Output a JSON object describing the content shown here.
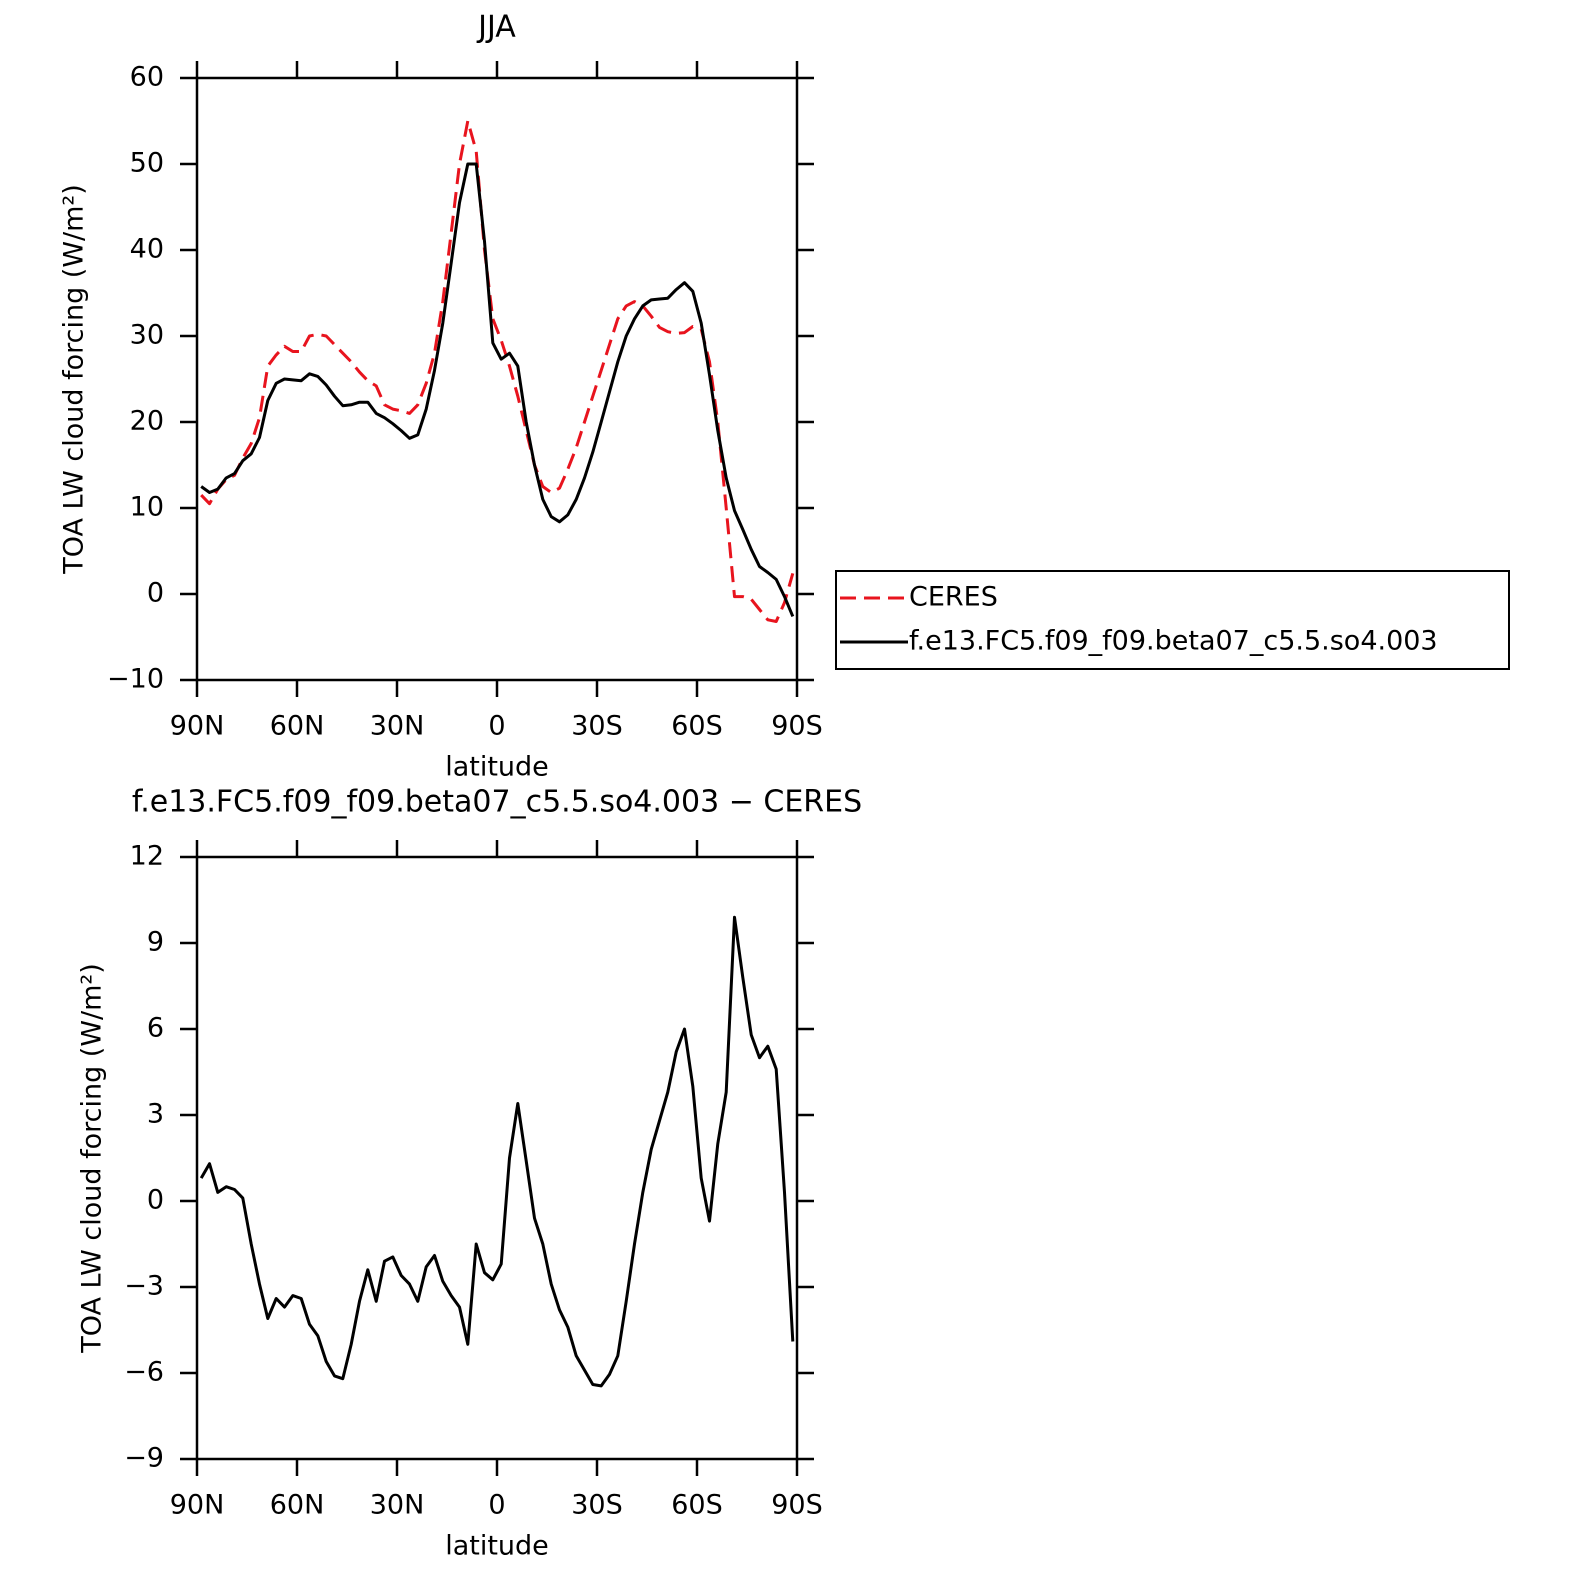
{
  "chart_data": [
    {
      "type": "line",
      "title": "JJA",
      "xlabel": "latitude",
      "ylabel": "TOA LW cloud forcing (W/m²)",
      "xlim": [
        90,
        -90
      ],
      "ylim": [
        -10,
        60
      ],
      "xticks": [
        {
          "value": 90,
          "label": "90N"
        },
        {
          "value": 60,
          "label": "60N"
        },
        {
          "value": 30,
          "label": "30N"
        },
        0,
        {
          "value": -30,
          "label": "30S"
        },
        {
          "value": -60,
          "label": "60S"
        },
        {
          "value": -90,
          "label": "90S"
        }
      ],
      "yticks": [
        {
          "value": -10,
          "label": "−10"
        },
        0,
        10,
        20,
        30,
        40,
        50,
        60
      ],
      "legend": "right",
      "x": [
        88.75,
        86.25,
        83.75,
        81.25,
        78.75,
        76.25,
        73.75,
        71.25,
        68.75,
        66.25,
        63.75,
        61.25,
        58.75,
        56.25,
        53.75,
        51.25,
        48.75,
        46.25,
        43.75,
        41.25,
        38.75,
        36.25,
        33.75,
        31.25,
        28.75,
        26.25,
        23.75,
        21.25,
        18.75,
        16.25,
        13.75,
        11.25,
        8.75,
        6.25,
        3.75,
        1.25,
        -1.25,
        -3.75,
        -6.25,
        -8.75,
        -11.25,
        -13.75,
        -16.25,
        -18.75,
        -21.25,
        -23.75,
        -26.25,
        -28.75,
        -31.25,
        -33.75,
        -36.25,
        -38.75,
        -41.25,
        -43.75,
        -46.25,
        -48.75,
        -51.25,
        -53.75,
        -56.25,
        -58.75,
        -61.25,
        -63.75,
        -66.25,
        -68.75,
        -71.25,
        -73.75,
        -76.25,
        -78.75,
        -81.25,
        -83.75,
        -86.25,
        -88.75
      ],
      "series": [
        {
          "name": "CERES",
          "color": "#e8141e",
          "dashed": true,
          "values": [
            11.5,
            10.5,
            12.2,
            13.3,
            13.8,
            15.8,
            17.5,
            20.5,
            26.5,
            27.8,
            28.8,
            28.2,
            28.2,
            30,
            30.2,
            30,
            29,
            28,
            27,
            25.8,
            24.8,
            24.2,
            22,
            21.5,
            21.3,
            21,
            22,
            24.5,
            28,
            34,
            42,
            50,
            55,
            51.5,
            40,
            32,
            29.5,
            26.5,
            23,
            19,
            15,
            12.5,
            11.8,
            12.3,
            14.5,
            17,
            20,
            23,
            26,
            29,
            32,
            33.5,
            34,
            33.5,
            32.3,
            31,
            30.5,
            30.3,
            30.4,
            31.1,
            30.8,
            27,
            20,
            10,
            -0.3,
            -0.3,
            -0.6,
            -1.8,
            -3,
            -3.2,
            -1,
            2.4
          ]
        },
        {
          "name": "f.e13.FC5.f09_f09.beta07_c5.5.so4.003",
          "color": "#000000",
          "dashed": false,
          "values": [
            12.5,
            11.8,
            12.2,
            13.5,
            14,
            15.5,
            16.3,
            18.2,
            22.5,
            24.5,
            25,
            24.9,
            24.8,
            25.6,
            25.3,
            24.3,
            23,
            21.9,
            22,
            22.3,
            22.3,
            21,
            20.5,
            19.8,
            19,
            18.1,
            18.5,
            21.5,
            26,
            31.5,
            38.5,
            45.5,
            50,
            50,
            41,
            29.2,
            27.3,
            28,
            26.5,
            20,
            15,
            11,
            9,
            8.4,
            9.2,
            11,
            13.5,
            16.5,
            20,
            23.5,
            27,
            30,
            32,
            33.5,
            34.2,
            34.3,
            34.4,
            35.4,
            36.2,
            35.2,
            31.5,
            25.5,
            19,
            13.5,
            9.7,
            7.5,
            5.2,
            3.2,
            2.5,
            1.7,
            -0.3,
            -2.6
          ]
        }
      ]
    },
    {
      "type": "line",
      "title": "f.e13.FC5.f09_f09.beta07_c5.5.so4.003 − CERES",
      "xlabel": "latitude",
      "ylabel": "TOA LW cloud forcing (W/m²)",
      "xlim": [
        90,
        -90
      ],
      "ylim": [
        -9,
        12
      ],
      "xticks": [
        {
          "value": 90,
          "label": "90N"
        },
        {
          "value": 60,
          "label": "60N"
        },
        {
          "value": 30,
          "label": "30N"
        },
        0,
        {
          "value": -30,
          "label": "30S"
        },
        {
          "value": -60,
          "label": "60S"
        },
        {
          "value": -90,
          "label": "90S"
        }
      ],
      "yticks": [
        {
          "value": -9,
          "label": "−9"
        },
        {
          "value": -6,
          "label": "−6"
        },
        {
          "value": -3,
          "label": "−3"
        },
        0,
        3,
        6,
        9,
        12
      ],
      "x": [
        88.75,
        86.25,
        83.75,
        81.25,
        78.75,
        76.25,
        73.75,
        71.25,
        68.75,
        66.25,
        63.75,
        61.25,
        58.75,
        56.25,
        53.75,
        51.25,
        48.75,
        46.25,
        43.75,
        41.25,
        38.75,
        36.25,
        33.75,
        31.25,
        28.75,
        26.25,
        23.75,
        21.25,
        18.75,
        16.25,
        13.75,
        11.25,
        8.75,
        6.25,
        3.75,
        1.25,
        -1.25,
        -3.75,
        -6.25,
        -8.75,
        -11.25,
        -13.75,
        -16.25,
        -18.75,
        -21.25,
        -23.75,
        -26.25,
        -28.75,
        -31.25,
        -33.75,
        -36.25,
        -38.75,
        -41.25,
        -43.75,
        -46.25,
        -48.75,
        -51.25,
        -53.75,
        -56.25,
        -58.75,
        -61.25,
        -63.75,
        -66.25,
        -68.75,
        -71.25,
        -73.75,
        -76.25,
        -78.75,
        -81.25,
        -83.75,
        -86.25,
        -88.75
      ],
      "series": [
        {
          "color": "#000000",
          "dashed": false,
          "values": [
            0.8,
            1.3,
            0.3,
            0.5,
            0.4,
            0.1,
            -1.5,
            -2.9,
            -4.1,
            -3.4,
            -3.7,
            -3.3,
            -3.4,
            -4.3,
            -4.7,
            -5.6,
            -6.1,
            -6.2,
            -5,
            -3.5,
            -2.4,
            -3.5,
            -2.1,
            -1.95,
            -2.6,
            -2.9,
            -3.5,
            -2.3,
            -1.9,
            -2.8,
            -3.3,
            -3.7,
            -5,
            -1.5,
            -2.5,
            -2.75,
            -2.2,
            1.5,
            3.4,
            1.4,
            -0.6,
            -1.5,
            -2.9,
            -3.8,
            -4.4,
            -5.4,
            -5.9,
            -6.4,
            -6.45,
            -6.05,
            -5.4,
            -3.5,
            -1.5,
            0.3,
            1.8,
            2.8,
            3.8,
            5.2,
            6,
            4,
            0.8,
            -0.7,
            2,
            3.8,
            9.9,
            7.8,
            5.8,
            5,
            5.4,
            4.6,
            0.3,
            -4.9
          ]
        }
      ]
    }
  ]
}
